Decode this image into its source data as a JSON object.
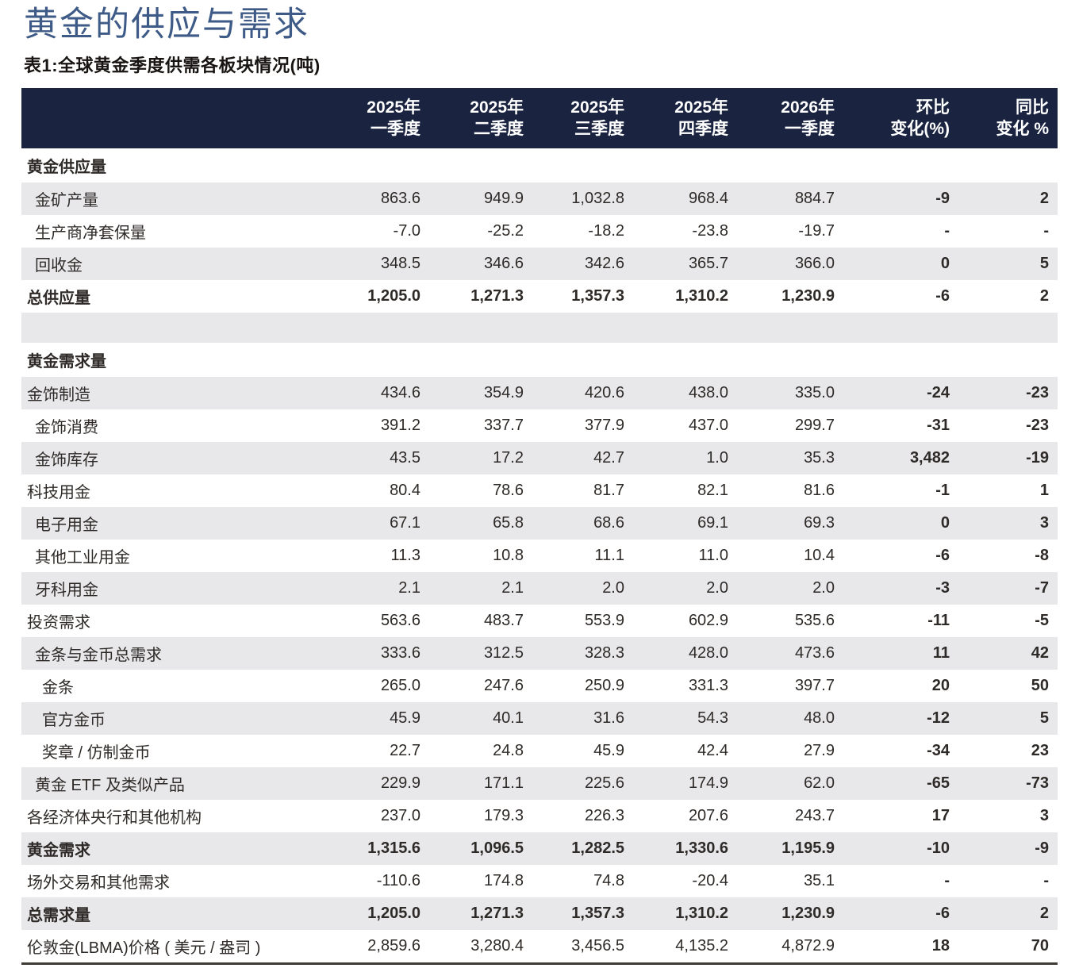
{
  "page": {
    "title": "黄金的供应与需求",
    "subtitle": "表1:全球黄金季度供需各板块情况(吨)"
  },
  "colors": {
    "navy": "#1a2440",
    "stripe": "#e8e8eb",
    "text": "#2e2a27",
    "title": "#3e5a87",
    "heading": "#171411",
    "rule": "#3f3c38"
  },
  "table": {
    "columns": [
      {
        "line1": "2025年",
        "line2": "一季度"
      },
      {
        "line1": "2025年",
        "line2": "二季度"
      },
      {
        "line1": "2025年",
        "line2": "三季度"
      },
      {
        "line1": "2025年",
        "line2": "四季度"
      },
      {
        "line1": "2026年",
        "line2": "一季度"
      },
      {
        "line1": "环比",
        "line2": "变化(%)"
      },
      {
        "line1": "同比",
        "line2": "变化 %"
      }
    ],
    "rows": [
      {
        "label": "黄金供应量",
        "type": "section",
        "indent": 0,
        "values": []
      },
      {
        "label": "金矿产量",
        "type": "",
        "indent": 1,
        "values": [
          "863.6",
          "949.9",
          "1,032.8",
          "968.4",
          "884.7",
          "-9",
          "2"
        ]
      },
      {
        "label": "生产商净套保量",
        "type": "",
        "indent": 1,
        "values": [
          "-7.0",
          "-25.2",
          "-18.2",
          "-23.8",
          "-19.7",
          "-",
          "-"
        ]
      },
      {
        "label": "回收金",
        "type": "",
        "indent": 1,
        "values": [
          "348.5",
          "346.6",
          "342.6",
          "365.7",
          "366.0",
          "0",
          "5"
        ]
      },
      {
        "label": "总供应量",
        "type": "total",
        "indent": 0,
        "values": [
          "1,205.0",
          "1,271.3",
          "1,357.3",
          "1,310.2",
          "1,230.9",
          "-6",
          "2"
        ]
      },
      {
        "label": "",
        "type": "spacer",
        "indent": 0,
        "values": []
      },
      {
        "label": "黄金需求量",
        "type": "section",
        "indent": 0,
        "values": []
      },
      {
        "label": "金饰制造",
        "type": "",
        "indent": 0,
        "values": [
          "434.6",
          "354.9",
          "420.6",
          "438.0",
          "335.0",
          "-24",
          "-23"
        ]
      },
      {
        "label": "金饰消费",
        "type": "",
        "indent": 1,
        "values": [
          "391.2",
          "337.7",
          "377.9",
          "437.0",
          "299.7",
          "-31",
          "-23"
        ]
      },
      {
        "label": "金饰库存",
        "type": "",
        "indent": 1,
        "values": [
          "43.5",
          "17.2",
          "42.7",
          "1.0",
          "35.3",
          "3,482",
          "-19"
        ]
      },
      {
        "label": "科技用金",
        "type": "",
        "indent": 0,
        "values": [
          "80.4",
          "78.6",
          "81.7",
          "82.1",
          "81.6",
          "-1",
          "1"
        ]
      },
      {
        "label": "电子用金",
        "type": "",
        "indent": 1,
        "values": [
          "67.1",
          "65.8",
          "68.6",
          "69.1",
          "69.3",
          "0",
          "3"
        ]
      },
      {
        "label": "其他工业用金",
        "type": "",
        "indent": 1,
        "values": [
          "11.3",
          "10.8",
          "11.1",
          "11.0",
          "10.4",
          "-6",
          "-8"
        ]
      },
      {
        "label": "牙科用金",
        "type": "",
        "indent": 1,
        "values": [
          "2.1",
          "2.1",
          "2.0",
          "2.0",
          "2.0",
          "-3",
          "-7"
        ]
      },
      {
        "label": "投资需求",
        "type": "",
        "indent": 0,
        "values": [
          "563.6",
          "483.7",
          "553.9",
          "602.9",
          "535.6",
          "-11",
          "-5"
        ]
      },
      {
        "label": "金条与金币总需求",
        "type": "",
        "indent": 1,
        "values": [
          "333.6",
          "312.5",
          "328.3",
          "428.0",
          "473.6",
          "11",
          "42"
        ]
      },
      {
        "label": "金条",
        "type": "",
        "indent": 2,
        "values": [
          "265.0",
          "247.6",
          "250.9",
          "331.3",
          "397.7",
          "20",
          "50"
        ]
      },
      {
        "label": "官方金币",
        "type": "",
        "indent": 2,
        "values": [
          "45.9",
          "40.1",
          "31.6",
          "54.3",
          "48.0",
          "-12",
          "5"
        ]
      },
      {
        "label": "奖章 / 仿制金币",
        "type": "",
        "indent": 2,
        "values": [
          "22.7",
          "24.8",
          "45.9",
          "42.4",
          "27.9",
          "-34",
          "23"
        ]
      },
      {
        "label": "黄金 ETF 及类似产品",
        "type": "",
        "indent": 1,
        "values": [
          "229.9",
          "171.1",
          "225.6",
          "174.9",
          "62.0",
          "-65",
          "-73"
        ]
      },
      {
        "label": "各经济体央行和其他机构",
        "type": "",
        "indent": 0,
        "values": [
          "237.0",
          "179.3",
          "226.3",
          "207.6",
          "243.7",
          "17",
          "3"
        ]
      },
      {
        "label": "黄金需求",
        "type": "total",
        "indent": 0,
        "values": [
          "1,315.6",
          "1,096.5",
          "1,282.5",
          "1,330.6",
          "1,195.9",
          "-10",
          "-9"
        ]
      },
      {
        "label": "场外交易和其他需求",
        "type": "",
        "indent": 0,
        "values": [
          "-110.6",
          "174.8",
          "74.8",
          "-20.4",
          "35.1",
          "-",
          "-"
        ]
      },
      {
        "label": "总需求量",
        "type": "total",
        "indent": 0,
        "values": [
          "1,205.0",
          "1,271.3",
          "1,357.3",
          "1,310.2",
          "1,230.9",
          "-6",
          "2"
        ]
      },
      {
        "label": "伦敦金(LBMA)价格 ( 美元 / 盎司 )",
        "type": "",
        "indent": 0,
        "values": [
          "2,859.6",
          "3,280.4",
          "3,456.5",
          "4,135.2",
          "4,872.9",
          "18",
          "70"
        ]
      }
    ]
  }
}
